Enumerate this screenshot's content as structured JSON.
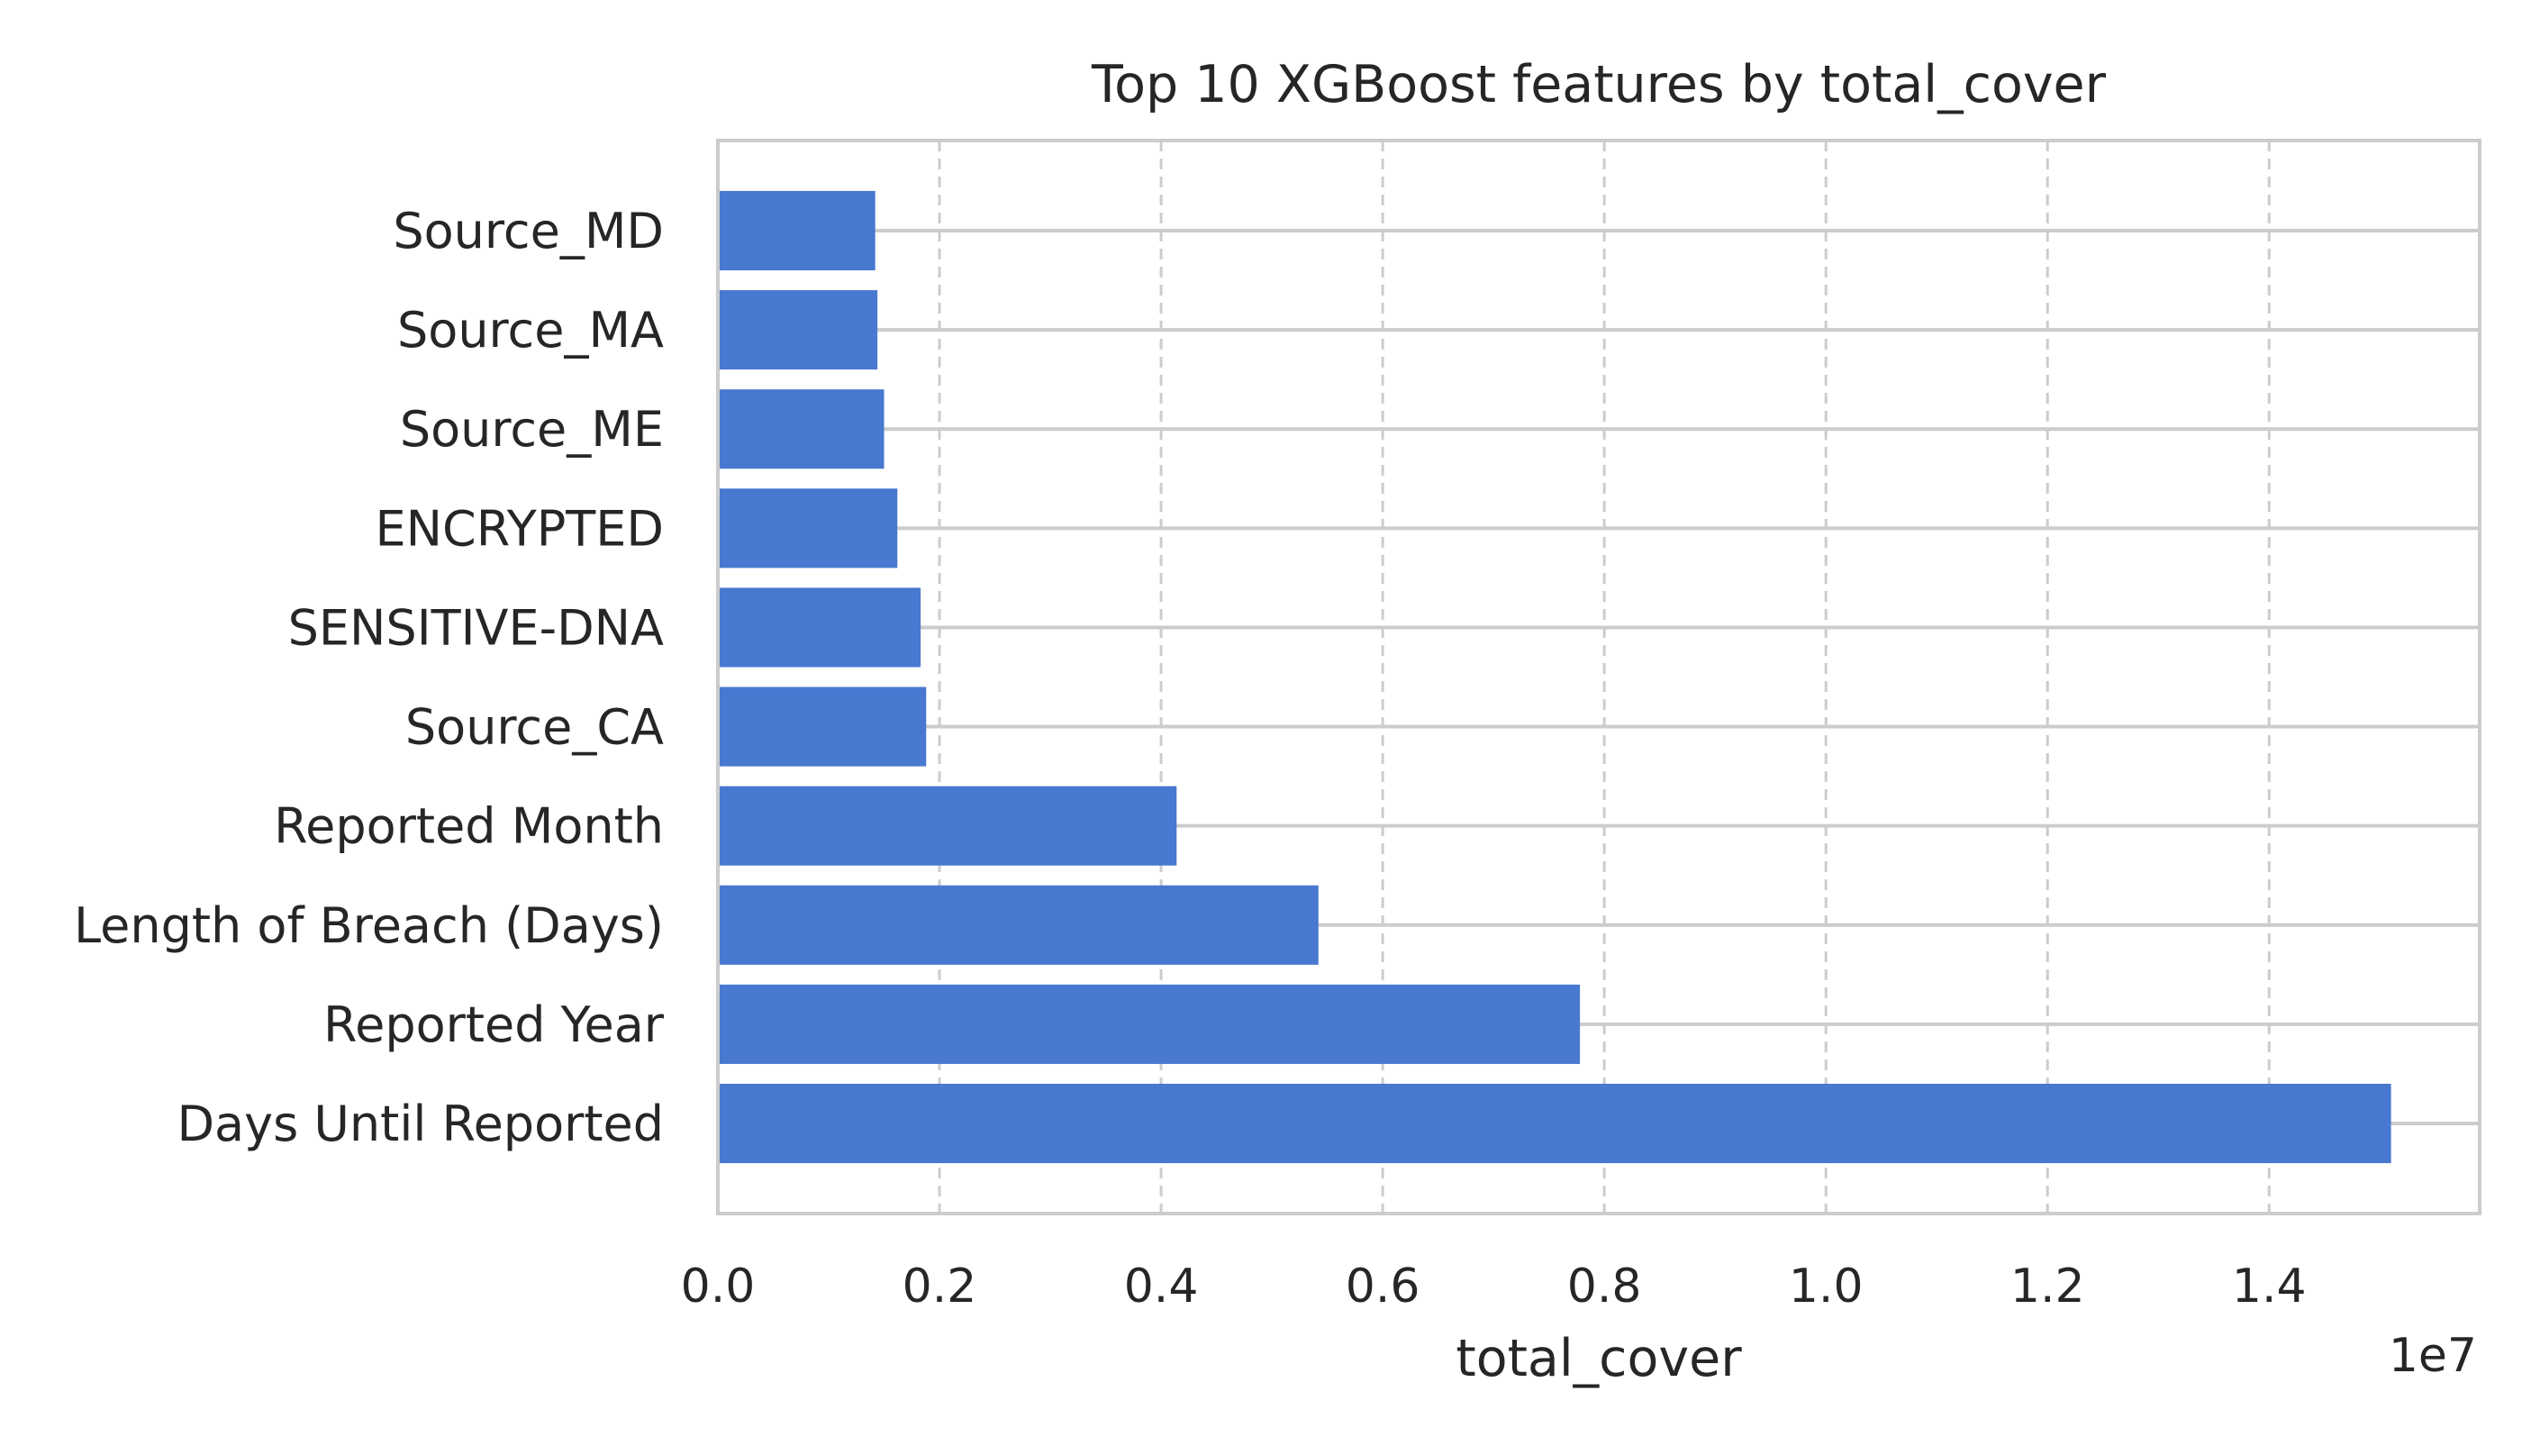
{
  "chart_data": {
    "type": "bar",
    "orientation": "horizontal",
    "title": "Top 10 XGBoost features by total_cover",
    "xlabel": "total_cover",
    "ylabel": "",
    "scale_note": "1e7",
    "scale_factor": 10000000,
    "xlim": [
      0,
      15900000
    ],
    "xticks": [
      0,
      2000000,
      4000000,
      6000000,
      8000000,
      10000000,
      12000000,
      14000000
    ],
    "xtick_labels": [
      "0.0",
      "0.2",
      "0.4",
      "0.6",
      "0.8",
      "1.0",
      "1.2",
      "1.4"
    ],
    "categories": [
      "Days Until Reported",
      "Reported Year",
      "Length of Breach (Days)",
      "Reported Month",
      "Source_CA",
      "SENSITIVE-DNA",
      "ENCRYPTED",
      "Source_ME",
      "Source_MA",
      "Source_MD"
    ],
    "values": [
      15100000,
      7780000,
      5420000,
      4140000,
      1880000,
      1830000,
      1620000,
      1500000,
      1440000,
      1420000
    ],
    "grid": true,
    "bar_color": "#4878cf",
    "grid_color": "#cccccc",
    "frame_color": "#cccccc"
  }
}
